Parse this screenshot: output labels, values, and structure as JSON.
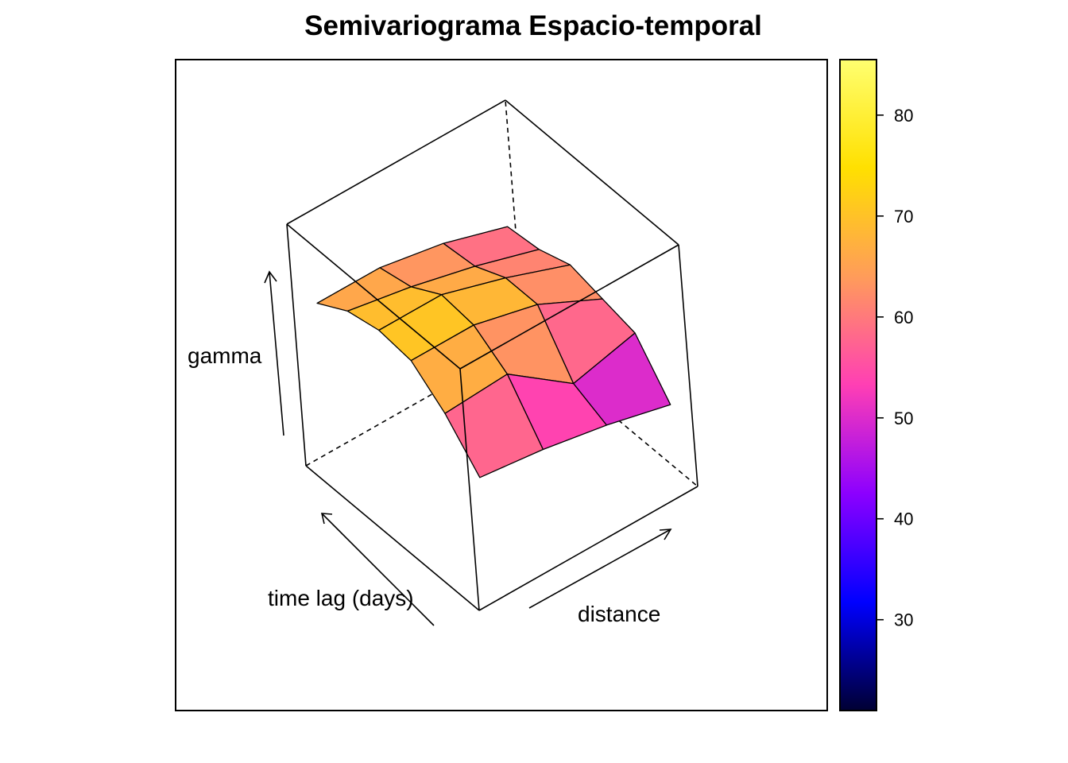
{
  "chart_data": {
    "type": "wireframe-3d-surface",
    "title": "Semivariograma Espacio-temporal",
    "axis_labels": {
      "x": "distance",
      "y": "time lag (days)",
      "z": "gamma"
    },
    "colorkey": {
      "range": [
        21,
        85.5
      ],
      "ticks": [
        30,
        40,
        50,
        60,
        70,
        80
      ],
      "tick_labels": [
        "30",
        "40",
        "50",
        "60",
        "70",
        "80"
      ],
      "palette_stops": [
        "#000033",
        "#0000ff",
        "#8c00ff",
        "#ff3fb4",
        "#ff9c5a",
        "#ffe000",
        "#ffff70"
      ]
    },
    "time_lags": [
      0,
      1,
      2,
      3,
      4,
      5
    ],
    "gamma_by_time_lag": [
      {
        "time_lag": 0,
        "gamma": [
          53,
          51,
          48,
          44
        ]
      },
      {
        "time_lag": 1,
        "gamma": [
          63,
          64,
          52,
          56
        ]
      },
      {
        "time_lag": 2,
        "gamma": [
          70,
          70,
          66,
          58
        ]
      },
      {
        "time_lag": 3,
        "gamma": [
          71,
          71,
          66,
          60
        ]
      },
      {
        "time_lag": 4,
        "gamma": [
          69,
          66,
          62,
          57
        ]
      },
      {
        "time_lag": 5,
        "gamma": [
          64,
          64,
          61,
          56
        ]
      }
    ],
    "grid": false,
    "legend_position": "right"
  }
}
